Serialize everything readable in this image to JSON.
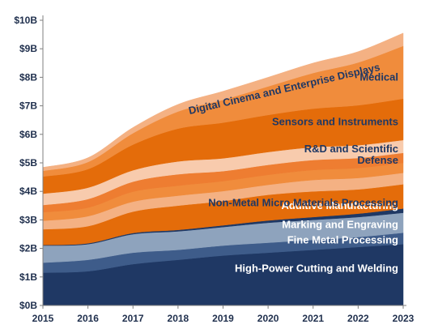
{
  "chart_data": {
    "type": "area",
    "stacked": true,
    "x": [
      "2015",
      "2016",
      "2017",
      "2018",
      "2019",
      "2020",
      "2021",
      "2022",
      "2023"
    ],
    "ylim": [
      0,
      10
    ],
    "y_ticks": [
      "$0B",
      "$1B",
      "$2B",
      "$3B",
      "$4B",
      "$5B",
      "$6B",
      "$7B",
      "$8B",
      "$9B",
      "$10B"
    ],
    "grid": false,
    "series": [
      {
        "name": "High-Power Cutting and Welding",
        "color": "#1f3864",
        "label_color": "#ffffff",
        "values": [
          1.15,
          1.2,
          1.45,
          1.6,
          1.75,
          1.85,
          1.95,
          2.05,
          2.15
        ]
      },
      {
        "name": "Fine Metal Processing",
        "color": "#3e5c8a",
        "label_color": "#ffffff",
        "values": [
          0.35,
          0.4,
          0.4,
          0.35,
          0.35,
          0.35,
          0.35,
          0.35,
          0.4
        ]
      },
      {
        "name": "Marking and Engraving",
        "color": "#8ea3bd",
        "label_color": "#ffffff",
        "values": [
          0.6,
          0.55,
          0.65,
          0.65,
          0.65,
          0.7,
          0.7,
          0.7,
          0.7
        ]
      },
      {
        "name": "Additive Manufacturing",
        "color": "#1f3864",
        "label_color": "#ffffff",
        "values": [
          0.02,
          0.03,
          0.04,
          0.05,
          0.06,
          0.08,
          0.1,
          0.12,
          0.15
        ]
      },
      {
        "name": "Non-Metal Micro Materials Processing",
        "color": "#e46c0a",
        "label_color": "#1f3864",
        "values": [
          0.55,
          0.6,
          0.75,
          0.85,
          0.85,
          0.9,
          0.9,
          0.85,
          0.85
        ]
      },
      {
        "name": "",
        "color": "#f4b183",
        "label_color": "#1f3864",
        "values": [
          0.3,
          0.35,
          0.35,
          0.35,
          0.35,
          0.35,
          0.4,
          0.4,
          0.4
        ]
      },
      {
        "name": "",
        "color": "#f08c3c",
        "label_color": "#1f3864",
        "values": [
          0.3,
          0.3,
          0.35,
          0.35,
          0.35,
          0.35,
          0.35,
          0.35,
          0.35
        ]
      },
      {
        "name": "Defense",
        "color": "#ee7d31",
        "label_color": "#1f3864",
        "values": [
          0.25,
          0.3,
          0.35,
          0.4,
          0.35,
          0.35,
          0.35,
          0.35,
          0.35
        ]
      },
      {
        "name": "R&D and Scientific",
        "color": "#f8cbad",
        "label_color": "#1f3864",
        "values": [
          0.4,
          0.4,
          0.4,
          0.45,
          0.45,
          0.45,
          0.45,
          0.45,
          0.45
        ]
      },
      {
        "name": "Sensors and Instruments",
        "color": "#e46c0a",
        "label_color": "#1f3864",
        "values": [
          0.6,
          0.65,
          0.9,
          1.15,
          1.25,
          1.3,
          1.35,
          1.4,
          1.45
        ]
      },
      {
        "name": "Medical",
        "color": "#f08c3c",
        "label_color": "#1f3864",
        "values": [
          0.2,
          0.25,
          0.4,
          0.6,
          0.8,
          1.0,
          1.25,
          1.5,
          1.85
        ]
      },
      {
        "name": "Digital Cinema and Enterprise Displays",
        "color": "#f4b183",
        "label_color": "#1f3864",
        "values": [
          0.12,
          0.15,
          0.2,
          0.25,
          0.3,
          0.32,
          0.35,
          0.38,
          0.45
        ]
      }
    ]
  }
}
